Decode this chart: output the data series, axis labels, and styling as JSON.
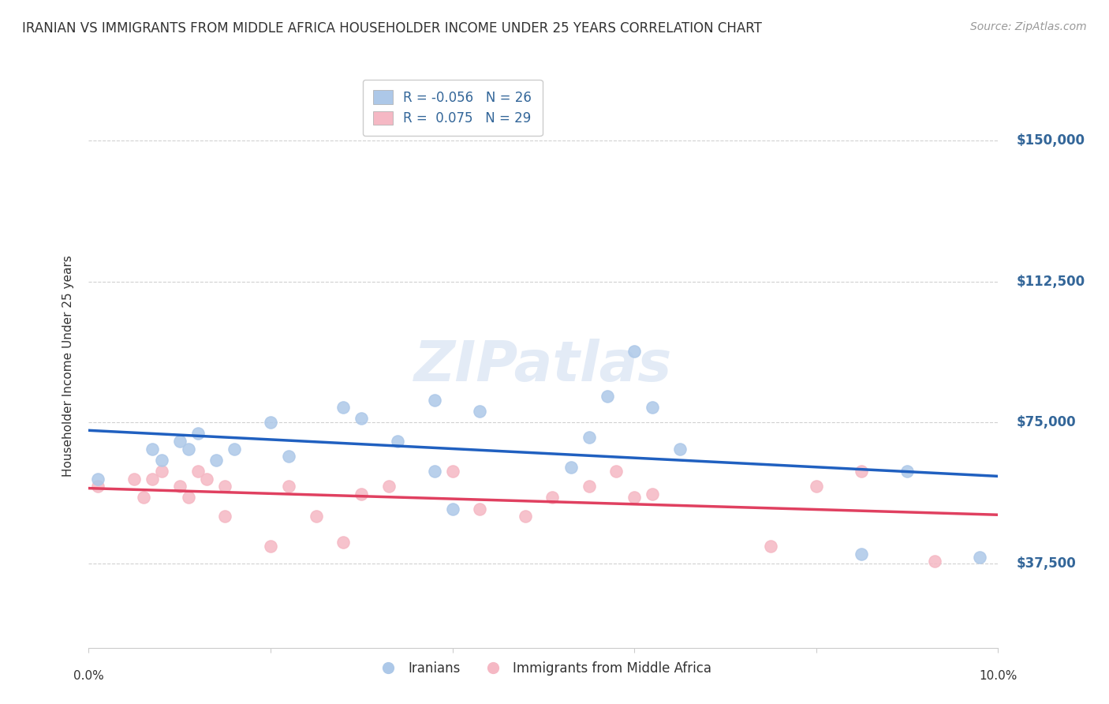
{
  "title": "IRANIAN VS IMMIGRANTS FROM MIDDLE AFRICA HOUSEHOLDER INCOME UNDER 25 YEARS CORRELATION CHART",
  "source": "Source: ZipAtlas.com",
  "ylabel": "Householder Income Under 25 years",
  "watermark": "ZIPatlas",
  "ytick_labels": [
    "$150,000",
    "$112,500",
    "$75,000",
    "$37,500"
  ],
  "ytick_values": [
    150000,
    112500,
    75000,
    37500
  ],
  "xmin": 0.0,
  "xmax": 0.1,
  "ymin": 15000,
  "ymax": 165000,
  "iranians_R": -0.056,
  "iranians_N": 26,
  "africa_R": 0.075,
  "africa_N": 29,
  "blue_color": "#adc8e8",
  "blue_line_color": "#2060c0",
  "pink_color": "#f5b8c4",
  "pink_line_color": "#e04060",
  "marker_size": 120,
  "iranians_x": [
    0.001,
    0.007,
    0.008,
    0.01,
    0.011,
    0.012,
    0.014,
    0.016,
    0.02,
    0.022,
    0.028,
    0.03,
    0.034,
    0.038,
    0.038,
    0.04,
    0.043,
    0.053,
    0.055,
    0.057,
    0.06,
    0.062,
    0.065,
    0.085,
    0.09,
    0.098
  ],
  "iranians_y": [
    60000,
    68000,
    65000,
    70000,
    68000,
    72000,
    65000,
    68000,
    75000,
    66000,
    79000,
    76000,
    70000,
    81000,
    62000,
    52000,
    78000,
    63000,
    71000,
    82000,
    94000,
    79000,
    68000,
    40000,
    62000,
    39000
  ],
  "africa_x": [
    0.001,
    0.005,
    0.006,
    0.007,
    0.008,
    0.01,
    0.011,
    0.012,
    0.013,
    0.015,
    0.015,
    0.02,
    0.022,
    0.025,
    0.028,
    0.03,
    0.033,
    0.04,
    0.043,
    0.048,
    0.051,
    0.055,
    0.058,
    0.06,
    0.062,
    0.075,
    0.08,
    0.085,
    0.093
  ],
  "africa_y": [
    58000,
    60000,
    55000,
    60000,
    62000,
    58000,
    55000,
    62000,
    60000,
    58000,
    50000,
    42000,
    58000,
    50000,
    43000,
    56000,
    58000,
    62000,
    52000,
    50000,
    55000,
    58000,
    62000,
    55000,
    56000,
    42000,
    58000,
    62000,
    38000
  ],
  "grid_color": "#cccccc",
  "background_color": "#ffffff",
  "title_color": "#333333",
  "right_axis_color": "#336699"
}
